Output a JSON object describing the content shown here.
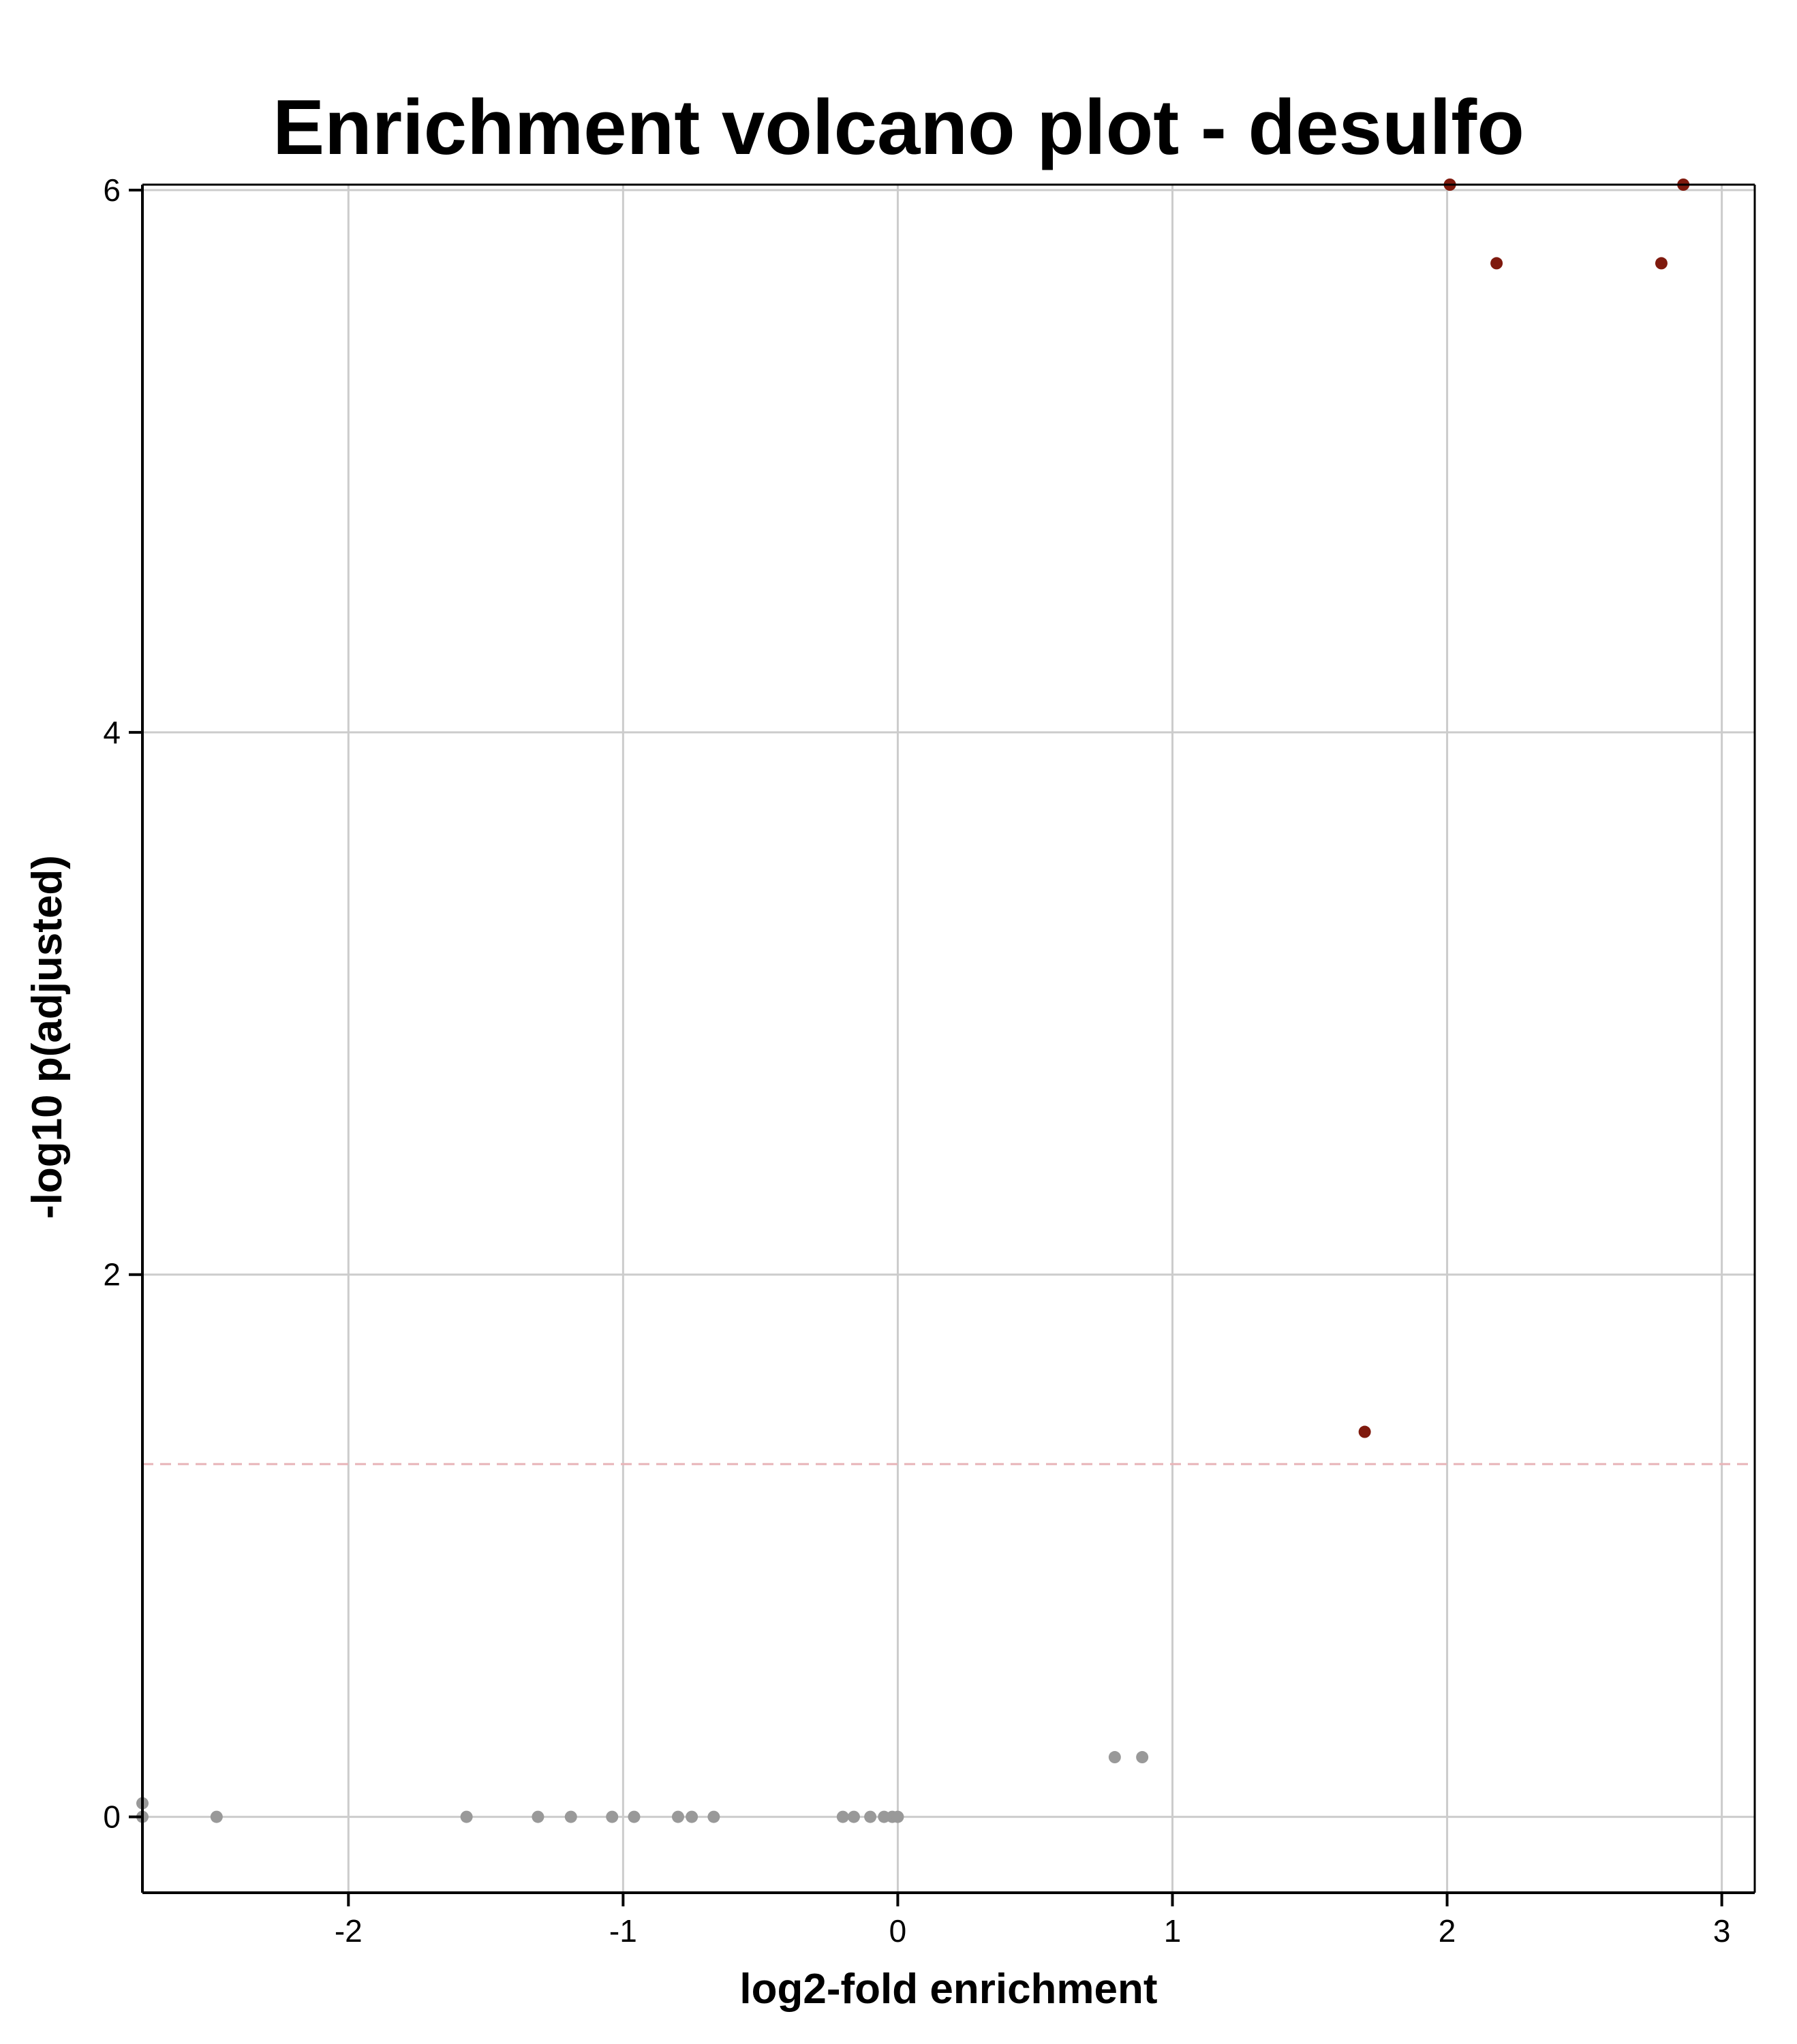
{
  "chart_data": {
    "type": "scatter",
    "title": "Enrichment volcano plot -  desulfo",
    "xlabel": "log2-fold enrichment",
    "ylabel": "-log10 p(adjusted)",
    "xlim": [
      -2.75,
      3.12
    ],
    "ylim": [
      -0.28,
      6.02
    ],
    "x_ticks": [
      -2,
      -1,
      0,
      1,
      2,
      3
    ],
    "y_ticks": [
      0,
      2,
      4,
      6
    ],
    "grid": true,
    "legend": "none",
    "threshold": {
      "y": 1.301,
      "style": "dashed",
      "color": "#E8B4B8"
    },
    "series": [
      {
        "color": "#999999",
        "points": [
          {
            "x": -2.75,
            "y": 0.05
          },
          {
            "x": -2.75,
            "y": 0.0
          },
          {
            "x": -2.48,
            "y": 0.0
          },
          {
            "x": -1.57,
            "y": 0.0
          },
          {
            "x": -1.31,
            "y": 0.0
          },
          {
            "x": -1.19,
            "y": 0.0
          },
          {
            "x": -1.04,
            "y": 0.0
          },
          {
            "x": -0.96,
            "y": 0.0
          },
          {
            "x": -0.8,
            "y": 0.0
          },
          {
            "x": -0.75,
            "y": 0.0
          },
          {
            "x": -0.67,
            "y": 0.0
          },
          {
            "x": -0.2,
            "y": 0.0
          },
          {
            "x": -0.16,
            "y": 0.0
          },
          {
            "x": -0.1,
            "y": 0.0
          },
          {
            "x": -0.05,
            "y": 0.0
          },
          {
            "x": -0.02,
            "y": 0.0
          },
          {
            "x": 0.0,
            "y": 0.0
          },
          {
            "x": 0.79,
            "y": 0.22
          },
          {
            "x": 0.89,
            "y": 0.22
          }
        ]
      },
      {
        "color": "#7F1A0E",
        "points": [
          {
            "x": 1.7,
            "y": 1.42
          },
          {
            "x": 2.18,
            "y": 5.73
          },
          {
            "x": 2.78,
            "y": 5.73
          },
          {
            "x": 2.01,
            "y": 6.02
          },
          {
            "x": 2.86,
            "y": 6.02
          }
        ]
      }
    ],
    "colors": {
      "grid": "#CCCCCC",
      "axis": "#000000",
      "background": "#FFFFFF"
    }
  }
}
